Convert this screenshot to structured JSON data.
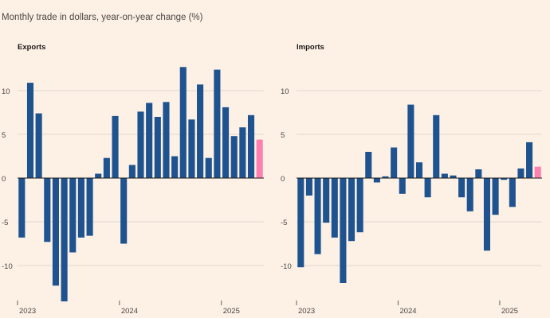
{
  "subtitle": "Monthly trade in dollars, year-on-year change (%)",
  "colors": {
    "bar": "#1f538f",
    "highlight": "#ff7fae",
    "background": "#fdf1e6"
  },
  "chart_data": [
    {
      "type": "bar",
      "title": "Exports",
      "ylim": [
        -14,
        14
      ],
      "yticks": [
        10,
        5,
        0,
        -5,
        -10
      ],
      "x_tick_labels": [
        {
          "label": "2023",
          "index": 0
        },
        {
          "label": "2024",
          "index": 12
        },
        {
          "label": "2025",
          "index": 24
        }
      ],
      "values": [
        -6.8,
        10.9,
        7.4,
        -7.3,
        -12.3,
        -14.1,
        -8.5,
        -6.8,
        -6.6,
        0.5,
        2.3,
        7.1,
        -7.5,
        1.5,
        7.6,
        8.6,
        7.0,
        8.7,
        2.5,
        12.7,
        6.7,
        10.7,
        2.3,
        12.4,
        8.1,
        4.8,
        5.8,
        7.2,
        4.4
      ],
      "highlight_index": 28,
      "grid": true
    },
    {
      "type": "bar",
      "title": "Imports",
      "ylim": [
        -14,
        14
      ],
      "yticks": [
        10,
        5,
        0,
        -5,
        -10
      ],
      "x_tick_labels": [
        {
          "label": "2023",
          "index": 0
        },
        {
          "label": "2024",
          "index": 12
        },
        {
          "label": "2025",
          "index": 24
        }
      ],
      "values": [
        -10.2,
        -2.0,
        -8.7,
        -5.1,
        -6.8,
        -12.0,
        -7.2,
        -6.2,
        3.0,
        -0.5,
        0.2,
        3.5,
        -1.8,
        8.4,
        1.8,
        -2.2,
        7.2,
        0.5,
        0.3,
        -2.2,
        -3.8,
        1.0,
        -8.3,
        -4.2,
        -0.2,
        -3.3,
        1.1,
        4.1,
        1.3
      ],
      "highlight_index": 28,
      "grid": true
    }
  ]
}
